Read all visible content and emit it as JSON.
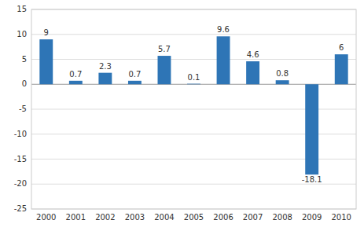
{
  "chart_data": {
    "type": "bar",
    "categories": [
      "2000",
      "2001",
      "2002",
      "2003",
      "2004",
      "2005",
      "2006",
      "2007",
      "2008",
      "2009",
      "2010"
    ],
    "values": [
      9,
      0.7,
      2.3,
      0.7,
      5.7,
      0.1,
      9.6,
      4.6,
      0.8,
      -18.1,
      6
    ],
    "color": "#2E75B6",
    "ylim": [
      -25,
      15
    ],
    "yticks": [
      -25,
      -20,
      -15,
      -10,
      -5,
      0,
      5,
      10,
      15
    ],
    "grid": true,
    "data_labels": true
  }
}
